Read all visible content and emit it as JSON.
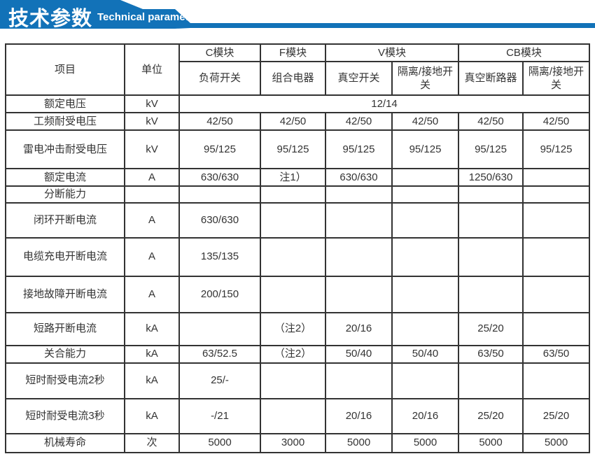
{
  "banner": {
    "title_zh": "技术参数",
    "title_en": "Technical parameter",
    "color": "#1272b8"
  },
  "colors": {
    "banner_blue": "#1272b8",
    "table_border": "#333333",
    "text": "#333333"
  },
  "table": {
    "header": {
      "item": "项目",
      "unit": "单位",
      "groups": [
        {
          "label": "C模块",
          "span": 1
        },
        {
          "label": "F模块",
          "span": 1
        },
        {
          "label": "V模块",
          "span": 2
        },
        {
          "label": "CB模块",
          "span": 2
        }
      ],
      "subheads": [
        "负荷开关",
        "组合电器",
        "真空开关",
        "隔离/接地开关",
        "真空断路器",
        "隔离/接地开关"
      ]
    },
    "rows": [
      {
        "label": "额定电压",
        "unit": "kV",
        "merged": "12/14"
      },
      {
        "label": "工频耐受电压",
        "unit": "kV",
        "cells": [
          "42/50",
          "42/50",
          "42/50",
          "42/50",
          "42/50",
          "42/50"
        ]
      },
      {
        "label": "雷电冲击耐受电压",
        "unit": "kV",
        "cells": [
          "95/125",
          "95/125",
          "95/125",
          "95/125",
          "95/125",
          "95/125"
        ]
      },
      {
        "label": "额定电流",
        "unit": "A",
        "cells": [
          "630/630",
          "注1）",
          "630/630",
          "",
          "1250/630",
          ""
        ]
      },
      {
        "label": "分断能力",
        "unit": "",
        "cells": [
          "",
          "",
          "",
          "",
          "",
          ""
        ]
      },
      {
        "label": "闭环开断电流",
        "unit": "A",
        "cells": [
          "630/630",
          "",
          "",
          "",
          "",
          ""
        ]
      },
      {
        "label": "电缆充电开断电流",
        "unit": "A",
        "cells": [
          "135/135",
          "",
          "",
          "",
          "",
          ""
        ]
      },
      {
        "label": "接地故障开断电流",
        "unit": "A",
        "cells": [
          "200/150",
          "",
          "",
          "",
          "",
          ""
        ]
      },
      {
        "label": "短路开断电流",
        "unit": "kA",
        "cells": [
          "",
          "（注2）",
          "20/16",
          "",
          "25/20",
          ""
        ]
      },
      {
        "label": "关合能力",
        "unit": "kA",
        "cells": [
          "63/52.5",
          "（注2）",
          "50/40",
          "50/40",
          "63/50",
          "63/50"
        ]
      },
      {
        "label": "短时耐受电流2秒",
        "unit": "kA",
        "cells": [
          "25/-",
          "",
          "",
          "",
          "",
          ""
        ]
      },
      {
        "label": "短时耐受电流3秒",
        "unit": "kA",
        "cells": [
          "-/21",
          "",
          "20/16",
          "20/16",
          "25/20",
          "25/20"
        ]
      },
      {
        "label": "机械寿命",
        "unit": "次",
        "cells": [
          "5000",
          "3000",
          "5000",
          "5000",
          "5000",
          "5000"
        ]
      }
    ]
  }
}
